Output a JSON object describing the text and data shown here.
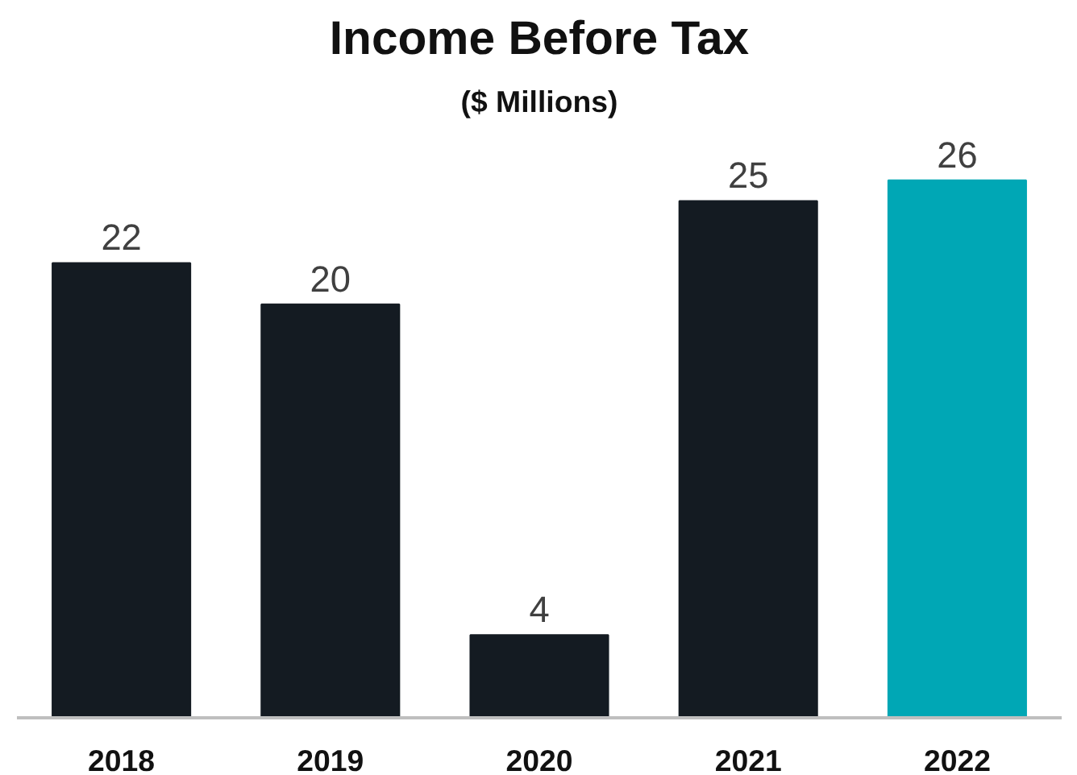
{
  "chart_data": {
    "type": "bar",
    "title": "Income Before Tax",
    "subtitle": "($ Millions)",
    "categories": [
      "2018",
      "2019",
      "2020",
      "2021",
      "2022"
    ],
    "values": [
      22,
      20,
      4,
      25,
      26
    ],
    "colors": [
      "#141b22",
      "#141b22",
      "#141b22",
      "#141b22",
      "#00a7b5"
    ],
    "data_labels": true
  }
}
